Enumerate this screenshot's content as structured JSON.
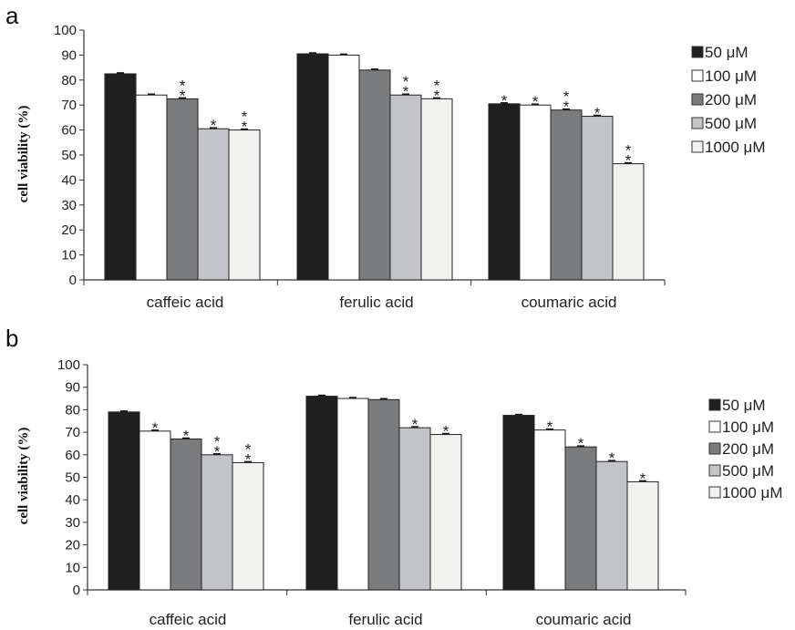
{
  "chart_data": [
    {
      "panel_label": "a",
      "type": "bar",
      "ylabel": "cell viability (%)",
      "ylim": [
        0,
        100
      ],
      "yticks": [
        0,
        10,
        20,
        30,
        40,
        50,
        60,
        70,
        80,
        90,
        100
      ],
      "categories": [
        "caffeic acid",
        "ferulic acid",
        "coumaric acid"
      ],
      "legend_position": "top-right",
      "series": [
        {
          "name": "50 μM",
          "color": "#1f1f1f",
          "values": [
            82.5,
            90.5,
            70.5
          ],
          "sig": [
            "",
            "",
            "*"
          ]
        },
        {
          "name": "100 μM",
          "color": "#ffffff",
          "values": [
            74,
            90,
            70
          ],
          "sig": [
            "",
            "",
            "*"
          ]
        },
        {
          "name": "200 μM",
          "color": "#7a7b7d",
          "values": [
            72.5,
            84,
            68
          ],
          "sig": [
            "**",
            "",
            "**"
          ]
        },
        {
          "name": "500 μM",
          "color": "#c3c4c7",
          "values": [
            60.5,
            74,
            65.5
          ],
          "sig": [
            "*",
            "**",
            "*"
          ]
        },
        {
          "name": "1000 μM",
          "color": "#f1f2f0",
          "values": [
            60,
            72.5,
            46.5
          ],
          "sig": [
            "**",
            "**",
            "**"
          ]
        }
      ]
    },
    {
      "panel_label": "b",
      "type": "bar",
      "ylabel": "cell viability (%)",
      "ylim": [
        0,
        100
      ],
      "yticks": [
        0,
        10,
        20,
        30,
        40,
        50,
        60,
        70,
        80,
        90,
        100
      ],
      "categories": [
        "caffeic acid",
        "ferulic acid",
        "coumaric acid"
      ],
      "legend_position": "right",
      "series": [
        {
          "name": "50 μM",
          "color": "#1f1f1f",
          "values": [
            79,
            86,
            77.5
          ],
          "sig": [
            "",
            "",
            ""
          ]
        },
        {
          "name": "100 μM",
          "color": "#ffffff",
          "values": [
            70.5,
            85,
            71
          ],
          "sig": [
            "*",
            "",
            "*"
          ]
        },
        {
          "name": "200 μM",
          "color": "#7a7b7d",
          "values": [
            67,
            84.5,
            63.5
          ],
          "sig": [
            "*",
            "",
            "*"
          ]
        },
        {
          "name": "500 μM",
          "color": "#c3c4c7",
          "values": [
            60,
            72,
            57
          ],
          "sig": [
            "**",
            "*",
            "*"
          ]
        },
        {
          "name": "1000 μM",
          "color": "#f1f2f0",
          "values": [
            56.5,
            69,
            48
          ],
          "sig": [
            "**",
            "*",
            "*"
          ]
        }
      ]
    }
  ]
}
